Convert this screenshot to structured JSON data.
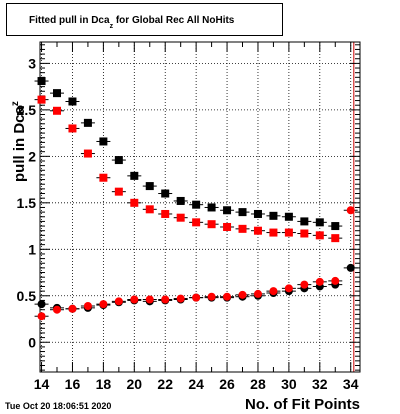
{
  "title": {
    "prefix": "Fitted pull in Dca",
    "subscript": "z",
    "suffix": " for Global Rec All NoHits"
  },
  "footer": {
    "timestamp": "Tue Oct 20 18:06:51 2020"
  },
  "colors": {
    "series1": "#000000",
    "series2": "#ff0000",
    "grid": "#000000",
    "marker_line": "#cc0000"
  },
  "chart_data": {
    "type": "scatter",
    "xlabel": "No. of Fit Points",
    "ylabel": "pull in Dca",
    "ylabel_subscript": "z",
    "xlim": [
      13.9,
      34.6
    ],
    "ylim": [
      -0.32,
      3.23
    ],
    "xticks": [
      14,
      16,
      18,
      20,
      22,
      24,
      26,
      28,
      30,
      32,
      34
    ],
    "yticks": [
      0,
      0.5,
      1,
      1.5,
      2,
      2.5,
      3
    ],
    "ytick_labels": [
      "0",
      "0.5",
      "1",
      "1.5",
      "2",
      "2.5",
      "3"
    ],
    "grid": true,
    "vertical_line_x": 34.2,
    "series": [
      {
        "marker": "square",
        "color": "#000000",
        "x": [
          14,
          15,
          16,
          17,
          18,
          19,
          20,
          21,
          22,
          23,
          24,
          25,
          26,
          27,
          28,
          29,
          30,
          31,
          32,
          33
        ],
        "y": [
          2.81,
          2.68,
          2.59,
          2.36,
          2.16,
          1.96,
          1.79,
          1.68,
          1.6,
          1.52,
          1.48,
          1.45,
          1.42,
          1.4,
          1.38,
          1.36,
          1.35,
          1.3,
          1.29,
          1.25
        ]
      },
      {
        "marker": "square",
        "color": "#ff0000",
        "x": [
          14,
          15,
          16,
          17,
          18,
          19,
          20,
          21,
          22,
          23,
          24,
          25,
          26,
          27,
          28,
          29,
          30,
          31,
          32,
          33
        ],
        "y": [
          2.61,
          2.49,
          2.3,
          2.03,
          1.77,
          1.62,
          1.5,
          1.43,
          1.38,
          1.34,
          1.29,
          1.27,
          1.24,
          1.22,
          1.2,
          1.18,
          1.18,
          1.17,
          1.15,
          1.12
        ]
      },
      {
        "marker": "circle",
        "color": "#000000",
        "x": [
          14,
          15,
          16,
          17,
          18,
          19,
          20,
          21,
          22,
          23,
          24,
          25,
          26,
          27,
          28,
          29,
          30,
          31,
          32,
          33,
          34
        ],
        "y": [
          0.41,
          0.37,
          0.36,
          0.37,
          0.4,
          0.43,
          0.45,
          0.44,
          0.45,
          0.46,
          0.48,
          0.48,
          0.48,
          0.49,
          0.5,
          0.53,
          0.55,
          0.58,
          0.6,
          0.62,
          0.8
        ]
      },
      {
        "marker": "circle",
        "color": "#ff0000",
        "x": [
          14,
          15,
          16,
          17,
          18,
          19,
          20,
          21,
          22,
          23,
          24,
          25,
          26,
          27,
          28,
          29,
          30,
          31,
          32,
          33,
          34
        ],
        "y": [
          0.28,
          0.35,
          0.36,
          0.39,
          0.41,
          0.44,
          0.46,
          0.46,
          0.46,
          0.47,
          0.48,
          0.49,
          0.49,
          0.51,
          0.52,
          0.55,
          0.58,
          0.62,
          0.65,
          0.66,
          1.42
        ]
      }
    ]
  }
}
